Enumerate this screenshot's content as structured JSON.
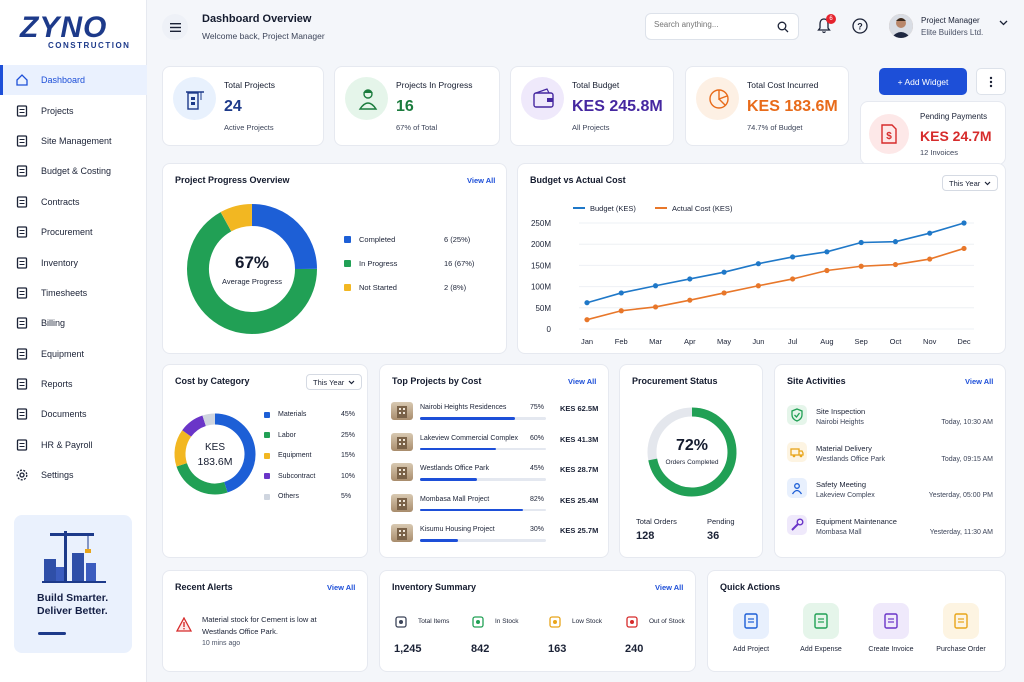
{
  "brand": {
    "name": "ZYNO",
    "tagline": "CONSTRUCTION"
  },
  "sidebar": {
    "items": [
      {
        "label": "Dashboard",
        "icon": "home-icon"
      },
      {
        "label": "Projects",
        "icon": "projects-icon"
      },
      {
        "label": "Site Management",
        "icon": "site-icon"
      },
      {
        "label": "Budget & Costing",
        "icon": "budget-icon"
      },
      {
        "label": "Contracts",
        "icon": "contract-icon"
      },
      {
        "label": "Procurement",
        "icon": "procurement-icon"
      },
      {
        "label": "Inventory",
        "icon": "inventory-icon"
      },
      {
        "label": "Timesheets",
        "icon": "timesheet-icon"
      },
      {
        "label": "Billing",
        "icon": "billing-icon"
      },
      {
        "label": "Equipment",
        "icon": "equipment-icon"
      },
      {
        "label": "Reports",
        "icon": "reports-icon"
      },
      {
        "label": "Documents",
        "icon": "documents-icon"
      },
      {
        "label": "HR & Payroll",
        "icon": "hr-icon"
      },
      {
        "label": "Settings",
        "icon": "gear-icon"
      }
    ],
    "promo": {
      "line1": "Build Smarter.",
      "line2": "Deliver Better."
    }
  },
  "header": {
    "title": "Dashboard Overview",
    "subtitle": "Welcome back, Project Manager",
    "search_placeholder": "Search anything...",
    "notifications": "6",
    "user_role": "Project Manager",
    "user_company": "Elite Builders Ltd."
  },
  "stats": [
    {
      "label": "Total Projects",
      "value": "24",
      "sub": "Active Projects",
      "color": "#1d3a8a",
      "bg": "#e8f1fd"
    },
    {
      "label": "Projects In Progress",
      "value": "16",
      "sub": "67% of Total",
      "color": "#1c7c3e",
      "bg": "#e5f5ea"
    },
    {
      "label": "Total Budget",
      "value": "KES 245.8M",
      "sub": "All Projects",
      "color": "#4527a0",
      "bg": "#efe9fb"
    },
    {
      "label": "Total Cost Incurred",
      "value": "KES 183.6M",
      "sub": "74.7% of Budget",
      "color": "#e86b1a",
      "bg": "#fdf0e4"
    }
  ],
  "actions": {
    "add_widget": "+ Add Widget"
  },
  "pending": {
    "label": "Pending Payments",
    "value": "KES 24.7M",
    "sub": "12 Invoices"
  },
  "progress": {
    "title": "Project Progress Overview",
    "view_all": "View All",
    "center_value": "67%",
    "center_label": "Average Progress",
    "legend": [
      {
        "label": "Completed",
        "value": "6 (25%)",
        "color": "#1d5fd6",
        "pct": 25
      },
      {
        "label": "In Progress",
        "value": "16 (67%)",
        "color": "#21a055",
        "pct": 67
      },
      {
        "label": "Not Started",
        "value": "2 (8%)",
        "color": "#f2b722",
        "pct": 8
      }
    ]
  },
  "budget_chart": {
    "title": "Budget vs Actual Cost",
    "period": "This Year",
    "chart_data": {
      "type": "line",
      "categories": [
        "Jan",
        "Feb",
        "Mar",
        "Apr",
        "May",
        "Jun",
        "Jul",
        "Aug",
        "Sep",
        "Oct",
        "Nov",
        "Dec"
      ],
      "series": [
        {
          "name": "Budget (KES)",
          "color": "#1f78c8",
          "values": [
            62,
            85,
            102,
            118,
            134,
            154,
            170,
            182,
            204,
            206,
            226,
            250
          ]
        },
        {
          "name": "Actual Cost (KES)",
          "color": "#e8772a",
          "values": [
            22,
            43,
            52,
            68,
            85,
            102,
            118,
            138,
            148,
            152,
            165,
            190
          ]
        }
      ],
      "yticks": [
        "250M",
        "200M",
        "150M",
        "100M",
        "50M",
        "0"
      ],
      "ylim": [
        0,
        250
      ]
    }
  },
  "cost_category": {
    "title": "Cost by Category",
    "period": "This Year",
    "center_top": "KES",
    "center_value": "183.6M",
    "items": [
      {
        "label": "Materials",
        "value": "45%",
        "pct": 45,
        "color": "#1d5fd6"
      },
      {
        "label": "Labor",
        "value": "25%",
        "pct": 25,
        "color": "#21a055"
      },
      {
        "label": "Equipment",
        "value": "15%",
        "pct": 15,
        "color": "#f2b722"
      },
      {
        "label": "Subcontract",
        "value": "10%",
        "pct": 10,
        "color": "#6a35c8"
      },
      {
        "label": "Others",
        "value": "5%",
        "pct": 5,
        "color": "#cfd5df"
      }
    ]
  },
  "top_projects": {
    "title": "Top Projects by Cost",
    "view_all": "View All",
    "items": [
      {
        "name": "Nairobi Heights Residences",
        "pct_label": "75%",
        "pct": 75,
        "cost": "KES 62.5M"
      },
      {
        "name": "Lakeview Commercial Complex",
        "pct_label": "60%",
        "pct": 60,
        "cost": "KES 41.3M"
      },
      {
        "name": "Westlands Office Park",
        "pct_label": "45%",
        "pct": 45,
        "cost": "KES 28.7M"
      },
      {
        "name": "Mombasa Mall Project",
        "pct_label": "82%",
        "pct": 82,
        "cost": "KES 25.4M"
      },
      {
        "name": "Kisumu Housing Project",
        "pct_label": "30%",
        "pct": 30,
        "cost": "KES 25.7M"
      }
    ]
  },
  "procurement": {
    "title": "Procurement Status",
    "center_value": "72%",
    "center_label": "Orders Completed",
    "pct": 72,
    "total_label": "Total Orders",
    "total_value": "128",
    "pending_label": "Pending",
    "pending_value": "36"
  },
  "site_activities": {
    "title": "Site Activities",
    "view_all": "View All",
    "items": [
      {
        "title": "Site Inspection",
        "place": "Nairobi Heights",
        "time": "Today, 10:30 AM",
        "icon": "check-shield-icon",
        "color": "#21a055",
        "bg": "#e5f5ea"
      },
      {
        "title": "Material Delivery",
        "place": "Westlands Office Park",
        "time": "Today, 09:15 AM",
        "icon": "truck-icon",
        "color": "#e8a51a",
        "bg": "#fdf4e2"
      },
      {
        "title": "Safety Meeting",
        "place": "Lakeview Complex",
        "time": "Yesterday, 05:00 PM",
        "icon": "people-icon",
        "color": "#1d5fd6",
        "bg": "#e8f0fd"
      },
      {
        "title": "Equipment Maintenance",
        "place": "Mombasa Mall",
        "time": "Yesterday, 11:30 AM",
        "icon": "wrench-icon",
        "color": "#6a35c8",
        "bg": "#efe9fb"
      }
    ]
  },
  "alerts": {
    "title": "Recent Alerts",
    "view_all": "View All",
    "items": [
      {
        "text1": "Material stock for Cement is low at",
        "text2": "Westlands Office Park.",
        "time": "10 mins ago"
      }
    ]
  },
  "inventory": {
    "title": "Inventory Summary",
    "view_all": "View All",
    "items": [
      {
        "label": "Total Items",
        "value": "1,245",
        "color": "#3c4459",
        "icon": "box-icon"
      },
      {
        "label": "In Stock",
        "value": "842",
        "color": "#21a055",
        "icon": "truck-icon"
      },
      {
        "label": "Low Stock",
        "value": "163",
        "color": "#e8a51a",
        "icon": "alert-box-icon"
      },
      {
        "label": "Out of Stock",
        "value": "240",
        "color": "#d62b2b",
        "icon": "out-stock-icon"
      }
    ]
  },
  "quick_actions": {
    "title": "Quick Actions",
    "items": [
      {
        "label": "Add Project",
        "color": "#1d5fd6",
        "bg": "#e8f0fd"
      },
      {
        "label": "Add Expense",
        "color": "#21a055",
        "bg": "#e5f5ea"
      },
      {
        "label": "Create Invoice",
        "color": "#6a35c8",
        "bg": "#efe9fb"
      },
      {
        "label": "Purchase Order",
        "color": "#e8a51a",
        "bg": "#fdf4e2"
      }
    ]
  }
}
